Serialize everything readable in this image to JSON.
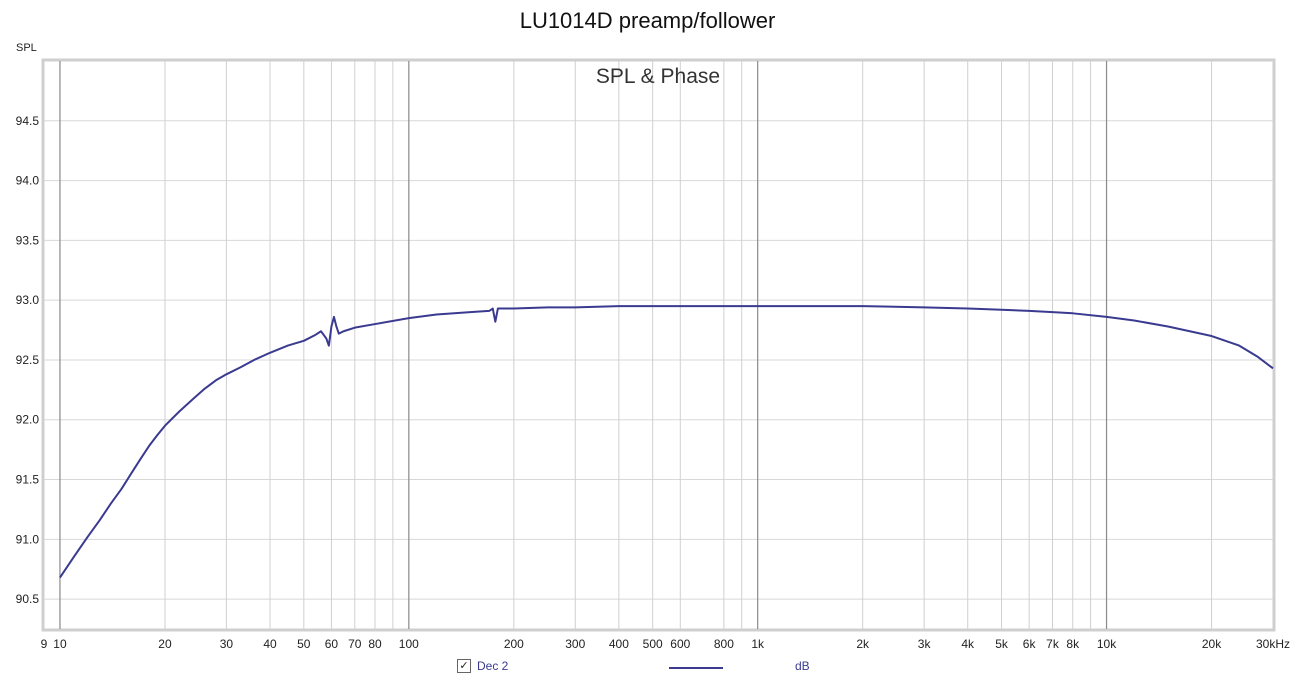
{
  "title": "LU1014D preamp/follower",
  "chart_data": {
    "type": "line",
    "title": "LU1014D preamp/follower",
    "subtitle": "SPL & Phase",
    "ylabel": "SPL",
    "xscale": "log",
    "xlim": [
      9,
      30000
    ],
    "ylim": [
      90.25,
      95.0
    ],
    "grid": true,
    "yticks": [
      90.5,
      91.0,
      91.5,
      92.0,
      92.5,
      93.0,
      93.5,
      94.0,
      94.5
    ],
    "ytick_labels": [
      "90.5",
      "91.0",
      "91.5",
      "92.0",
      "92.5",
      "93.0",
      "93.5",
      "94.0",
      "94.5"
    ],
    "xticks": [
      9,
      10,
      20,
      30,
      40,
      50,
      60,
      70,
      80,
      100,
      200,
      300,
      400,
      500,
      600,
      800,
      1000,
      2000,
      3000,
      4000,
      5000,
      6000,
      7000,
      8000,
      10000,
      20000,
      30000
    ],
    "xtick_labels": [
      "9",
      "10",
      "20",
      "30",
      "40",
      "50",
      "60",
      "70",
      "80",
      "100",
      "200",
      "300",
      "400",
      "500",
      "600",
      "800",
      "1k",
      "2k",
      "3k",
      "4k",
      "5k",
      "6k",
      "7k",
      "8k",
      "10k",
      "20k",
      "30kHz"
    ],
    "series": [
      {
        "name": "Dec 2",
        "color": "#3a3a90",
        "points": [
          [
            10,
            90.68
          ],
          [
            11,
            90.86
          ],
          [
            12,
            91.02
          ],
          [
            13,
            91.16
          ],
          [
            14,
            91.3
          ],
          [
            15,
            91.42
          ],
          [
            16,
            91.55
          ],
          [
            17,
            91.67
          ],
          [
            18,
            91.78
          ],
          [
            19,
            91.87
          ],
          [
            20,
            91.95
          ],
          [
            22,
            92.07
          ],
          [
            24,
            92.17
          ],
          [
            26,
            92.26
          ],
          [
            28,
            92.33
          ],
          [
            30,
            92.38
          ],
          [
            33,
            92.44
          ],
          [
            36,
            92.5
          ],
          [
            40,
            92.56
          ],
          [
            45,
            92.62
          ],
          [
            50,
            92.66
          ],
          [
            54,
            92.71
          ],
          [
            56,
            92.74
          ],
          [
            58,
            92.68
          ],
          [
            59,
            92.62
          ],
          [
            60,
            92.78
          ],
          [
            61,
            92.86
          ],
          [
            62,
            92.78
          ],
          [
            63,
            92.72
          ],
          [
            65,
            92.74
          ],
          [
            70,
            92.77
          ],
          [
            80,
            92.8
          ],
          [
            100,
            92.85
          ],
          [
            120,
            92.88
          ],
          [
            150,
            92.9
          ],
          [
            170,
            92.91
          ],
          [
            174,
            92.93
          ],
          [
            177,
            92.82
          ],
          [
            180,
            92.93
          ],
          [
            200,
            92.93
          ],
          [
            250,
            92.94
          ],
          [
            300,
            92.94
          ],
          [
            400,
            92.95
          ],
          [
            500,
            92.95
          ],
          [
            700,
            92.95
          ],
          [
            1000,
            92.95
          ],
          [
            2000,
            92.95
          ],
          [
            3000,
            92.94
          ],
          [
            4000,
            92.93
          ],
          [
            5000,
            92.92
          ],
          [
            6000,
            92.91
          ],
          [
            7000,
            92.9
          ],
          [
            8000,
            92.89
          ],
          [
            10000,
            92.86
          ],
          [
            12000,
            92.83
          ],
          [
            15000,
            92.78
          ],
          [
            20000,
            92.7
          ],
          [
            24000,
            92.62
          ],
          [
            27000,
            92.53
          ],
          [
            30000,
            92.43
          ]
        ]
      }
    ],
    "legend": {
      "position": "bottom",
      "series_name": "Dec 2",
      "checked": true,
      "unit": "dB"
    }
  }
}
